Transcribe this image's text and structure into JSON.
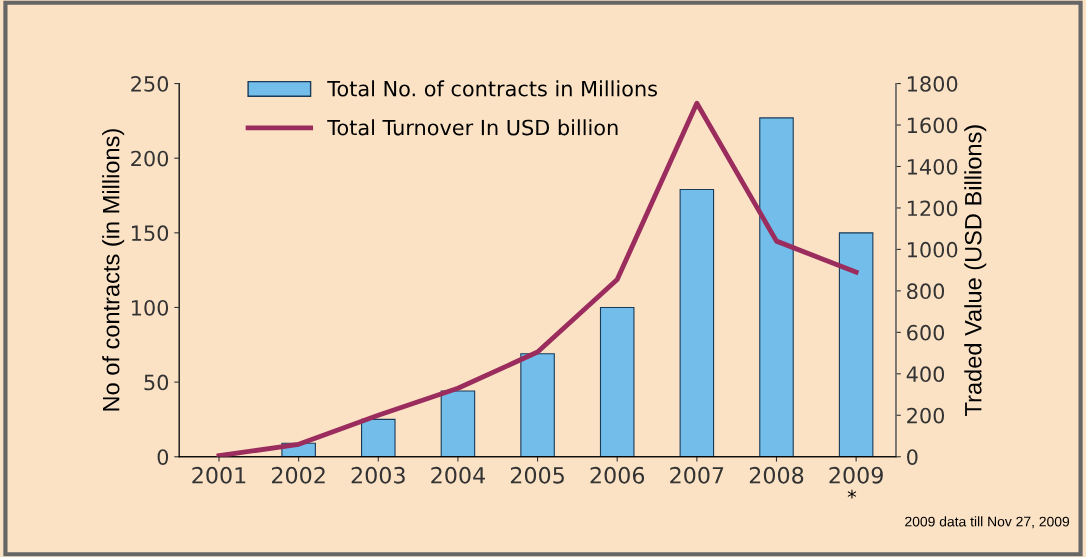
{
  "chart_data": {
    "type": "bar",
    "ylabel": "No of contracts (in Millions)",
    "y2label": "Traded Value (USD Billions)",
    "categories": [
      "2001",
      "2002",
      "2003",
      "2004",
      "2005",
      "2006",
      "2007",
      "2008",
      "2009"
    ],
    "series": [
      {
        "name": "Total No. of contracts in Millions",
        "type": "bar",
        "color": "#72bde9",
        "values": [
          null,
          9,
          25,
          44,
          69,
          100,
          179,
          227,
          150
        ]
      },
      {
        "name": "Total Turnover In USD billion",
        "type": "line",
        "axis": "y2",
        "color": "#9b2c5e",
        "values": [
          5,
          60,
          200,
          330,
          505,
          855,
          1705,
          1040,
          890
        ]
      }
    ],
    "ylim": [
      0,
      250
    ],
    "yticks": [
      0,
      50,
      100,
      150,
      200,
      250
    ],
    "y2lim": [
      0,
      1800
    ],
    "y2ticks": [
      0,
      200,
      400,
      600,
      800,
      1000,
      1200,
      1400,
      1600,
      1800
    ],
    "grid": false,
    "legend": "top",
    "marker": "none",
    "line_style": "solid",
    "annotations": [
      "*",
      "2009 data till Nov 27, 2009"
    ]
  }
}
